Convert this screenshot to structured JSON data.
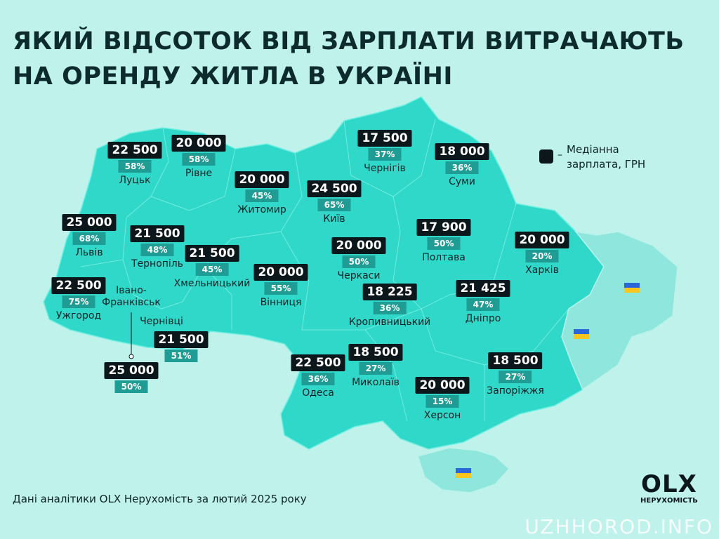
{
  "title": {
    "line1": "ЯКИЙ ВІДСОТОК ВІД ЗАРПЛАТИ ВИТРАЧАЮТЬ",
    "line2": "НА ОРЕНДУ ЖИТЛА В УКРАЇНІ"
  },
  "legend": {
    "dash": "–",
    "text_line1": "Медіанна",
    "text_line2": "зарплата, ГРН"
  },
  "colors": {
    "background": "#bff2ea",
    "map": "#2fd8c9",
    "occupied": "#8fe6dc",
    "salary_box": "#0b171b",
    "percent_box": "#1f9d94"
  },
  "regions": [
    {
      "city": "Луцьк",
      "salary": "22 500",
      "percent": "58%"
    },
    {
      "city": "Рівне",
      "salary": "20 000",
      "percent": "58%"
    },
    {
      "city": "Житомир",
      "salary": "20 000",
      "percent": "45%"
    },
    {
      "city": "Київ",
      "salary": "24 500",
      "percent": "65%"
    },
    {
      "city": "Чернігів",
      "salary": "17 500",
      "percent": "37%"
    },
    {
      "city": "Суми",
      "salary": "18 000",
      "percent": "36%"
    },
    {
      "city": "Львів",
      "salary": "25 000",
      "percent": "68%"
    },
    {
      "city": "Тернопіль",
      "salary": "21 500",
      "percent": "48%"
    },
    {
      "city": "Хмельницький",
      "salary": "21 500",
      "percent": "45%"
    },
    {
      "city": "Вінниця",
      "salary": "20 000",
      "percent": "55%"
    },
    {
      "city": "Черкаси",
      "salary": "20 000",
      "percent": "50%"
    },
    {
      "city": "Полтава",
      "salary": "17 900",
      "percent": "50%"
    },
    {
      "city": "Харків",
      "salary": "20 000",
      "percent": "20%"
    },
    {
      "city": "Кропивницький",
      "salary": "18 225",
      "percent": "36%"
    },
    {
      "city": "Дніпро",
      "salary": "21 425",
      "percent": "47%"
    },
    {
      "city": "Ужгород",
      "salary": "22 500",
      "percent": "75%"
    },
    {
      "city": "Чернівці",
      "salary": "21 500",
      "percent": "51%"
    },
    {
      "city": "Івано-\nФранківськ",
      "salary": "25 000",
      "percent": "50%"
    },
    {
      "city": "Одеса",
      "salary": "22 500",
      "percent": "36%"
    },
    {
      "city": "Миколаїв",
      "salary": "18 500",
      "percent": "27%"
    },
    {
      "city": "Херсон",
      "salary": "20 000",
      "percent": "15%"
    },
    {
      "city": "Запоріжжя",
      "salary": "18 500",
      "percent": "27%"
    }
  ],
  "occupied_flags": [
    "ukraine-flag-icon",
    "ukraine-flag-icon",
    "ukraine-flag-icon"
  ],
  "footer": "Дані аналітики OLX Нерухомість за лютий 2025 року",
  "logo": {
    "brand": "OLX",
    "subtitle": "НЕРУХОМІСТЬ"
  },
  "watermark": "UZHHOROD.INFO"
}
